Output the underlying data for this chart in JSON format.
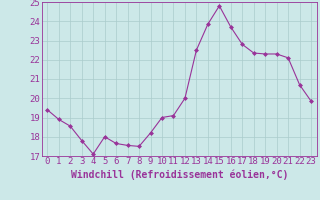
{
  "x": [
    0,
    1,
    2,
    3,
    4,
    5,
    6,
    7,
    8,
    9,
    10,
    11,
    12,
    13,
    14,
    15,
    16,
    17,
    18,
    19,
    20,
    21,
    22,
    23
  ],
  "y": [
    19.4,
    18.9,
    18.55,
    17.8,
    17.1,
    18.0,
    17.65,
    17.55,
    17.5,
    18.2,
    19.0,
    19.1,
    20.0,
    22.5,
    23.85,
    24.8,
    23.7,
    22.8,
    22.35,
    22.3,
    22.3,
    22.1,
    20.7,
    19.85
  ],
  "line_color": "#993399",
  "marker": "D",
  "marker_size": 2.0,
  "bg_color": "#cce8e8",
  "grid_color": "#aacccc",
  "xlabel": "Windchill (Refroidissement éolien,°C)",
  "ylabel": "",
  "ylim": [
    17,
    25
  ],
  "xlim": [
    -0.5,
    23.5
  ],
  "yticks": [
    17,
    18,
    19,
    20,
    21,
    22,
    23,
    24,
    25
  ],
  "xticks": [
    0,
    1,
    2,
    3,
    4,
    5,
    6,
    7,
    8,
    9,
    10,
    11,
    12,
    13,
    14,
    15,
    16,
    17,
    18,
    19,
    20,
    21,
    22,
    23
  ],
  "tick_color": "#993399",
  "label_color": "#993399",
  "font_size": 6.5,
  "xlabel_font_size": 7.0
}
